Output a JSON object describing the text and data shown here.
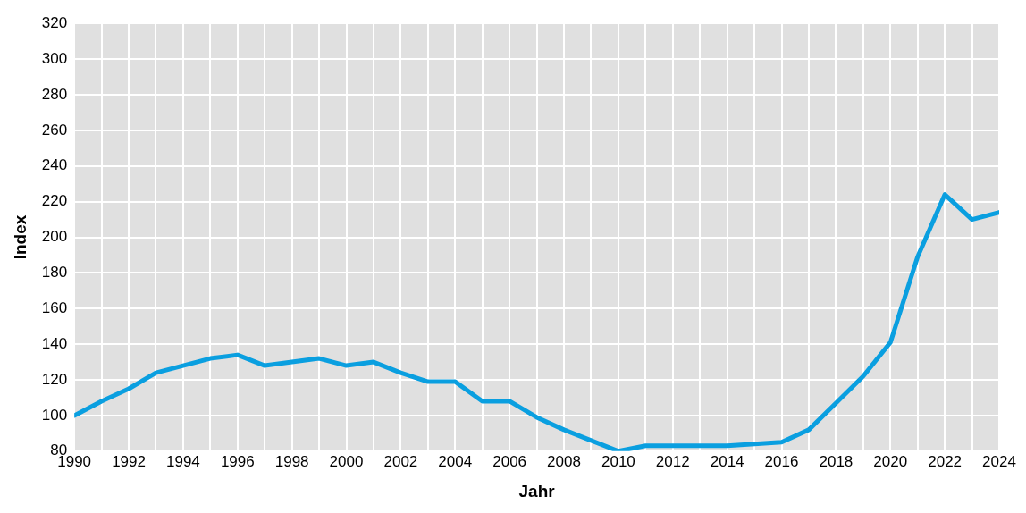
{
  "chart_data": {
    "type": "line",
    "xlabel": "Jahr",
    "ylabel": "Index",
    "x": [
      1990,
      1991,
      1992,
      1993,
      1994,
      1995,
      1996,
      1997,
      1998,
      1999,
      2000,
      2001,
      2002,
      2003,
      2004,
      2005,
      2006,
      2007,
      2008,
      2009,
      2010,
      2011,
      2012,
      2013,
      2014,
      2015,
      2016,
      2017,
      2018,
      2019,
      2020,
      2021,
      2022,
      2023,
      2024
    ],
    "series": [
      {
        "color": "#0a9fe0",
        "values": [
          100,
          108,
          115,
          124,
          128,
          132,
          134,
          128,
          130,
          132,
          128,
          130,
          124,
          119,
          119,
          108,
          108,
          99,
          92,
          86,
          80,
          83,
          83,
          83,
          83,
          84,
          85,
          92,
          107,
          122,
          141,
          189,
          224,
          210,
          214
        ]
      }
    ],
    "xlim": [
      1990,
      2024
    ],
    "ylim": [
      80,
      320
    ],
    "xticks": [
      1990,
      {
        "value": 1991,
        "label": null
      },
      1992,
      {
        "value": 1993,
        "label": null
      },
      1994,
      {
        "value": 1995,
        "label": null
      },
      1996,
      {
        "value": 1997,
        "label": null
      },
      1998,
      {
        "value": 1999,
        "label": null
      },
      2000,
      {
        "value": 2001,
        "label": null
      },
      2002,
      {
        "value": 2003,
        "label": null
      },
      2004,
      {
        "value": 2005,
        "label": null
      },
      2006,
      {
        "value": 2007,
        "label": null
      },
      2008,
      {
        "value": 2009,
        "label": null
      },
      2010,
      {
        "value": 2011,
        "label": null
      },
      2012,
      {
        "value": 2013,
        "label": null
      },
      2014,
      {
        "value": 2015,
        "label": null
      },
      2016,
      {
        "value": 2017,
        "label": null
      },
      2018,
      {
        "value": 2019,
        "label": null
      },
      2020,
      {
        "value": 2021,
        "label": null
      },
      2022,
      {
        "value": 2023,
        "label": null
      },
      2024
    ],
    "yticks": [
      80,
      100,
      120,
      140,
      160,
      180,
      200,
      220,
      240,
      260,
      280,
      300,
      320
    ],
    "grid": true,
    "legend": false,
    "marker": "none",
    "line_style": "solid"
  }
}
